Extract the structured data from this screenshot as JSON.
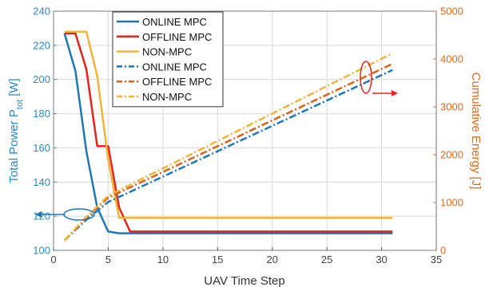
{
  "chart_data": {
    "type": "line",
    "xlabel": "UAV Time Step",
    "ylabel_left": {
      "main": "Total Power P",
      "sub": "tot",
      "unit": " [W]"
    },
    "ylabel_right": "Cumulative Energy [J]",
    "xlim": [
      0,
      35
    ],
    "ylim_left": [
      100,
      240
    ],
    "ylim_right": [
      0,
      5000
    ],
    "xticks": [
      0,
      5,
      10,
      15,
      20,
      25,
      30,
      35
    ],
    "yticks_left": [
      100,
      120,
      140,
      160,
      180,
      200,
      220,
      240
    ],
    "yticks_right": [
      0,
      1000,
      2000,
      3000,
      4000,
      5000
    ],
    "grid": true,
    "legend_placement": "top-left",
    "colors": {
      "online": "#1f77b4",
      "offline": "#e8231c",
      "nonmpc": "#f0b43c",
      "offline_energy": "#d9621c",
      "left_axis": "#2a8ac8",
      "right_axis": "#e06a1c"
    },
    "series": [
      {
        "name": "ONLINE MPC",
        "axis": "left",
        "style": "solid",
        "color": "#1f77b4",
        "x": [
          1,
          2,
          3,
          4,
          5,
          6,
          7,
          8,
          31
        ],
        "y": [
          227,
          205,
          158,
          125,
          111,
          110,
          110,
          110,
          110
        ]
      },
      {
        "name": "OFFLINE MPC",
        "axis": "left",
        "style": "solid",
        "color": "#e8231c",
        "x": [
          1,
          2,
          3,
          4,
          5,
          6,
          7,
          31
        ],
        "y": [
          227,
          227,
          206,
          161,
          161,
          125,
          111,
          111
        ]
      },
      {
        "name": "NON-MPC",
        "axis": "left",
        "style": "solid",
        "color": "#f0b43c",
        "x": [
          1,
          2,
          3,
          4,
          5,
          6,
          7,
          31
        ],
        "y": [
          228,
          228,
          228,
          202,
          153,
          119,
          119,
          119
        ]
      },
      {
        "name": "ONLINE MPC",
        "axis": "right",
        "style": "dashed",
        "color": "#1f77b4",
        "x": [
          1,
          3,
          5,
          31
        ],
        "y": [
          210,
          640,
          1010,
          3770
        ]
      },
      {
        "name": "OFFLINE MPC",
        "axis": "right",
        "style": "dashed",
        "color": "#d9621c",
        "x": [
          1,
          3,
          5,
          31
        ],
        "y": [
          210,
          680,
          1100,
          3900
        ]
      },
      {
        "name": "NON-MPC",
        "axis": "right",
        "style": "dashed",
        "color": "#f0b43c",
        "x": [
          1,
          3,
          5,
          31
        ],
        "y": [
          210,
          700,
          1140,
          4120
        ]
      }
    ]
  }
}
